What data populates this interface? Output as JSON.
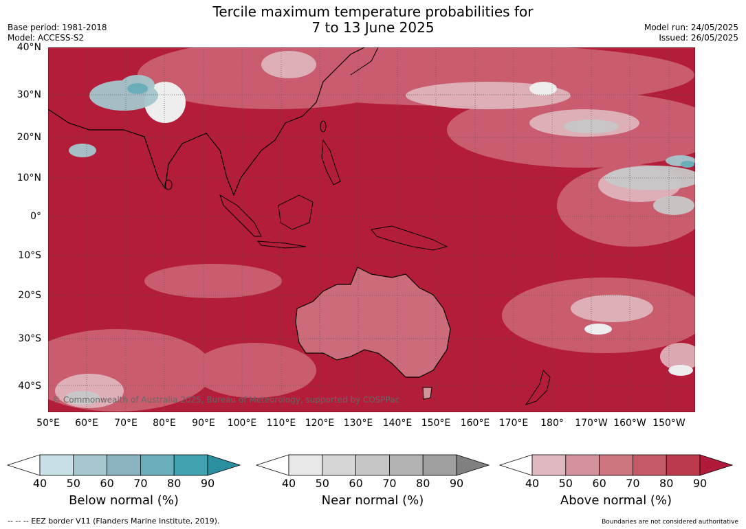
{
  "header": {
    "title_line1": "Tercile maximum temperature probabilities for",
    "title_line2": "7 to 13 June 2025",
    "base_period": "Base period: 1981-2018",
    "model": "Model: ACCESS-S2",
    "model_run": "Model run: 24/05/2025",
    "issued": "Issued: 26/05/2025"
  },
  "map": {
    "lat_labels": [
      "40°N",
      "30°N",
      "20°N",
      "10°N",
      "0°",
      "10°S",
      "20°S",
      "30°S",
      "40°S"
    ],
    "lon_labels": [
      "50°E",
      "60°E",
      "70°E",
      "80°E",
      "90°E",
      "100°E",
      "110°E",
      "120°E",
      "130°E",
      "140°E",
      "150°E",
      "160°E",
      "170°E",
      "180°",
      "170°W",
      "160°W",
      "150°W"
    ],
    "copyright": "© Commonwealth of Australia 2025, Bureau of Meteorology, supported by COSPPac",
    "colors": {
      "dominant_above": "#b41d3a",
      "ocean_base": "#b71c3c"
    }
  },
  "colorbars": [
    {
      "title": "Below normal (%)",
      "ticks": [
        "40",
        "50",
        "60",
        "70",
        "80",
        "90"
      ],
      "colors": [
        "#ffffff",
        "#c9e0e6",
        "#a5c7cd",
        "#8bb3bf",
        "#6aaeba",
        "#42a2b0",
        "#2a8f9e"
      ]
    },
    {
      "title": "Near normal (%)",
      "ticks": [
        "40",
        "50",
        "60",
        "70",
        "80",
        "90"
      ],
      "colors": [
        "#ffffff",
        "#e8e8e8",
        "#d6d6d6",
        "#c6c6c6",
        "#b3b3b3",
        "#9f9f9f",
        "#808080"
      ]
    },
    {
      "title": "Above normal (%)",
      "ticks": [
        "40",
        "50",
        "60",
        "70",
        "80",
        "90"
      ],
      "colors": [
        "#ffffff",
        "#e0b8bf",
        "#d3939c",
        "#cc7480",
        "#c45a68",
        "#bb3a4b",
        "#b01a3b"
      ]
    }
  ],
  "footer": {
    "eez_note": "--  --  -- EEZ border V11 (Flanders Marine Institute, 2019).",
    "boundaries_note": "Boundaries are not considered authoritative"
  }
}
